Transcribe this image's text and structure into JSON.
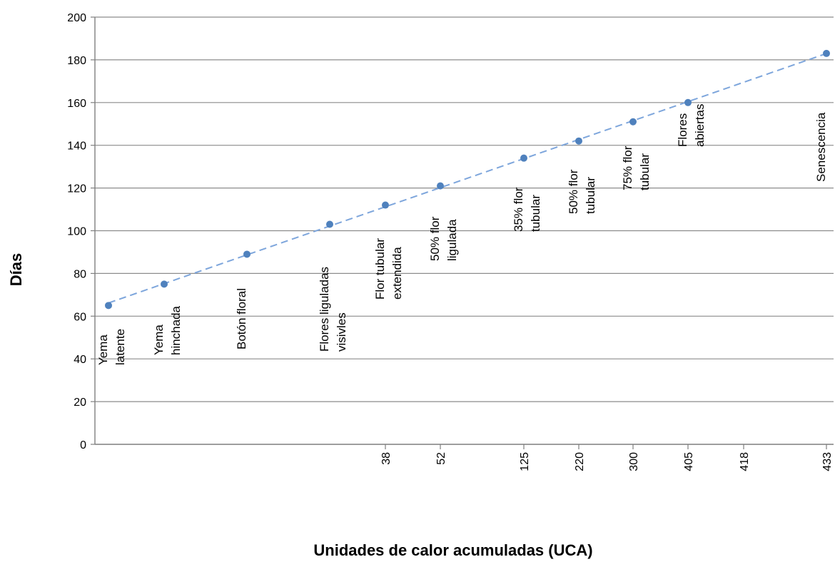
{
  "chart_data": {
    "type": "line",
    "xlabel": "Unidades de calor acumuladas (UCA)",
    "ylabel": "Días",
    "ylim": [
      0,
      200
    ],
    "y_ticks": [
      "0",
      "20",
      "40",
      "60",
      "80",
      "100",
      "120",
      "140",
      "160",
      "180",
      "200"
    ],
    "x_tick_labels": [
      "38",
      "52",
      "125",
      "220",
      "300",
      "405",
      "418",
      "433"
    ],
    "grid": "horizontal",
    "trendline": "dashed linear",
    "points": [
      {
        "label": [
          "Yema",
          "latente"
        ],
        "x_tick": "",
        "y": 65
      },
      {
        "label": [
          "Yema",
          "hinchada"
        ],
        "x_tick": "",
        "y": 75
      },
      {
        "label": [
          "Botón floral"
        ],
        "x_tick": "",
        "y": 89
      },
      {
        "label": [
          "Flores liguladas",
          "visivles"
        ],
        "x_tick": "",
        "y": 103
      },
      {
        "label": [
          "Flor tubular",
          "extendida"
        ],
        "x_tick": "38",
        "y": 112
      },
      {
        "label": [
          "50% flor",
          "ligulada"
        ],
        "x_tick": "52",
        "y": 121
      },
      {
        "label": [
          "35% flor",
          "tubular"
        ],
        "x_tick": "125",
        "y": 134
      },
      {
        "label": [
          "50% flor",
          "tubular"
        ],
        "x_tick": "220",
        "y": 142
      },
      {
        "label": [
          "75% flor",
          "tubular"
        ],
        "x_tick": "300",
        "y": 151
      },
      {
        "label": [
          "Flores",
          "abiertas"
        ],
        "x_tick": "405",
        "y": 160
      },
      {
        "label": [],
        "x_tick": "418",
        "y": null
      },
      {
        "label": [
          "Senescencia"
        ],
        "x_tick": "433",
        "y": 183
      }
    ],
    "colors": {
      "marker": "#4f81bd",
      "trend": "#7ea6dc",
      "grid": "#8c8c8c",
      "axis": "#7f7f7f"
    }
  }
}
